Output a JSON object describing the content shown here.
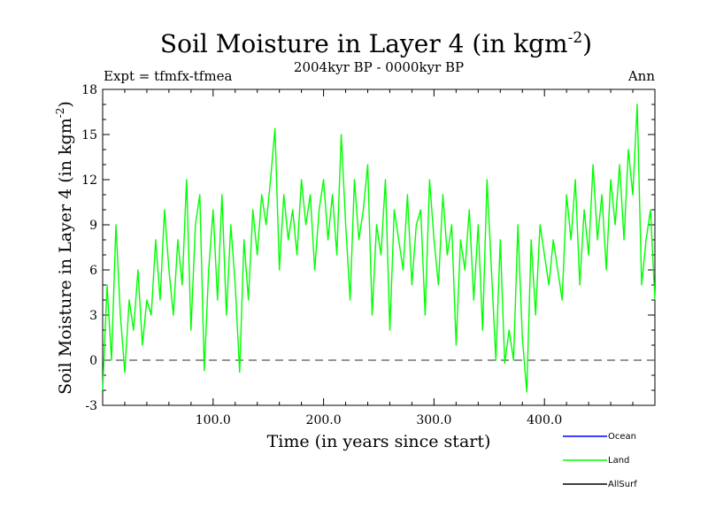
{
  "chart_data": {
    "type": "line",
    "title": "Soil Moisture in Layer 4 (in kgm",
    "title_sup": "-2",
    "title_close": ")",
    "experiment": "Expt = tfmfx-tfmea",
    "period": "2004kyr BP - 0000kyr BP",
    "season": "Ann",
    "xlabel": "Time (in years since start)",
    "ylabel": "Soil Moisture in Layer 4 (in kgm",
    "ylabel_sup": "-2",
    "ylabel_close": ")",
    "xlim": [
      0,
      500
    ],
    "ylim": [
      -3,
      18
    ],
    "xticks": [
      100,
      200,
      300,
      400
    ],
    "xtick_labels": [
      "100.0",
      "200.0",
      "300.0",
      "400.0"
    ],
    "yticks": [
      -3,
      0,
      3,
      6,
      9,
      12,
      15,
      18
    ],
    "ytick_labels": [
      "-3",
      "0",
      "3",
      "6",
      "9",
      "12",
      "15",
      "18"
    ],
    "reference_line": 0,
    "series": [
      {
        "name": "Ocean",
        "color": "#0000ff",
        "values": []
      },
      {
        "name": "Land",
        "color": "#00ff00",
        "x": [
          0,
          4,
          8,
          12,
          16,
          20,
          24,
          28,
          32,
          36,
          40,
          44,
          48,
          52,
          56,
          60,
          64,
          68,
          72,
          76,
          80,
          84,
          88,
          92,
          96,
          100,
          104,
          108,
          112,
          116,
          120,
          124,
          128,
          132,
          136,
          140,
          144,
          148,
          152,
          156,
          160,
          164,
          168,
          172,
          176,
          180,
          184,
          188,
          192,
          196,
          200,
          204,
          208,
          212,
          216,
          220,
          224,
          228,
          232,
          236,
          240,
          244,
          248,
          252,
          256,
          260,
          264,
          268,
          272,
          276,
          280,
          284,
          288,
          292,
          296,
          300,
          304,
          308,
          312,
          316,
          320,
          324,
          328,
          332,
          336,
          340,
          344,
          348,
          352,
          356,
          360,
          364,
          368,
          372,
          376,
          380,
          384,
          388,
          392,
          396,
          400,
          404,
          408,
          412,
          416,
          420,
          424,
          428,
          432,
          436,
          440,
          444,
          448,
          452,
          456,
          460,
          464,
          468,
          472,
          476,
          480,
          484,
          488,
          492,
          496,
          500
        ],
        "values": [
          -2,
          5,
          0,
          9,
          3,
          -0.8,
          4,
          2,
          6,
          1,
          4,
          3,
          8,
          4,
          10,
          6,
          3,
          8,
          5,
          12,
          2,
          9,
          11,
          -0.7,
          6,
          10,
          4,
          11,
          3,
          9,
          5,
          -0.8,
          8,
          4,
          10,
          7,
          11,
          9,
          12,
          15.4,
          6,
          11,
          8,
          10,
          7,
          12,
          9,
          11,
          6,
          10,
          12,
          8,
          11,
          7,
          15,
          9,
          4,
          12,
          8,
          10,
          13,
          3,
          9,
          7,
          12,
          2,
          10,
          8,
          6,
          11,
          5,
          9,
          10,
          3,
          12,
          8,
          5,
          11,
          7,
          9,
          1,
          8,
          6,
          10,
          4,
          9,
          2,
          12,
          6,
          0,
          8,
          -0.2,
          2,
          0,
          9,
          1.5,
          -2.1,
          8,
          3,
          9,
          7,
          5,
          8,
          6,
          4,
          11,
          8,
          12,
          5,
          10,
          7,
          13,
          8,
          11,
          6,
          12,
          9,
          13,
          8,
          14,
          11,
          17,
          5,
          8,
          10,
          4
        ]
      },
      {
        "name": "AllSurf",
        "color": "#000000",
        "values": []
      }
    ]
  }
}
